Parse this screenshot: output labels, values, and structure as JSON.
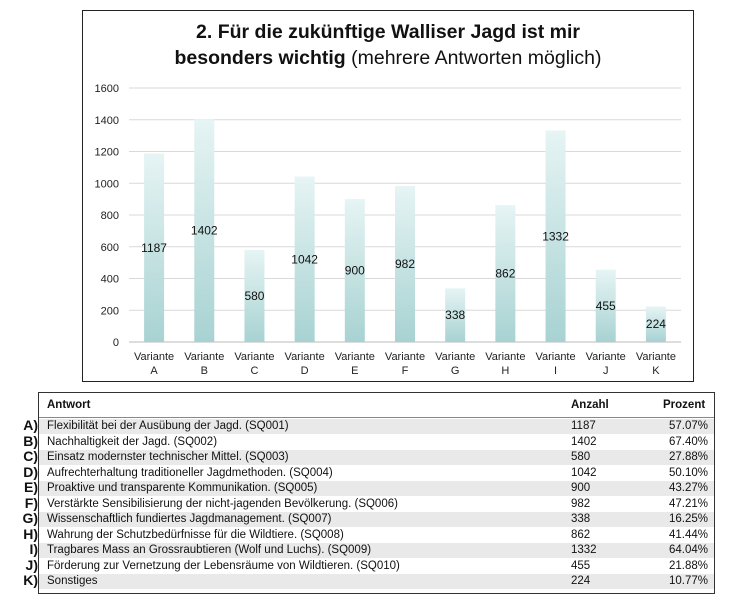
{
  "chart_data": {
    "type": "bar",
    "title_bold_1": "2. Für die zukünftige Walliser Jagd ist mir",
    "title_bold_2": "besonders wichtig",
    "title_normal": "(mehrere Antworten möglich)",
    "categories": [
      "Variante A",
      "Variante B",
      "Variante C",
      "Variante D",
      "Variante E",
      "Variante F",
      "Variante G",
      "Variante H",
      "Variante I",
      "Variante J",
      "Variante K"
    ],
    "values": [
      1187,
      1402,
      580,
      1042,
      900,
      982,
      338,
      862,
      1332,
      455,
      224
    ],
    "ylim": [
      0,
      1600
    ],
    "yticks": [
      0,
      200,
      400,
      600,
      800,
      1000,
      1200,
      1400,
      1600
    ],
    "grid": true,
    "bar_color_top": "#e6f4f4",
    "bar_color_bottom": "#a8d2d2"
  },
  "table": {
    "headers": {
      "answer": "Antwort",
      "count": "Anzahl",
      "percent": "Prozent"
    },
    "rows": [
      {
        "letter": "A)",
        "answer": "Flexibilität bei der Ausübung der Jagd. (SQ001)",
        "count": "1187",
        "percent": "57.07%"
      },
      {
        "letter": "B)",
        "answer": "Nachhaltigkeit der Jagd. (SQ002)",
        "count": "1402",
        "percent": "67.40%"
      },
      {
        "letter": "C)",
        "answer": "Einsatz modernster technischer Mittel. (SQ003)",
        "count": "580",
        "percent": "27.88%"
      },
      {
        "letter": "D)",
        "answer": "Aufrechterhaltung traditioneller Jagdmethoden. (SQ004)",
        "count": "1042",
        "percent": "50.10%"
      },
      {
        "letter": "E)",
        "answer": "Proaktive und transparente Kommunikation. (SQ005)",
        "count": "900",
        "percent": "43.27%"
      },
      {
        "letter": "F)",
        "answer": "Verstärkte Sensibilisierung der nicht-jagenden Bevölkerung. (SQ006)",
        "count": "982",
        "percent": "47.21%"
      },
      {
        "letter": "G)",
        "answer": "Wissenschaftlich fundiertes Jagdmanagement. (SQ007)",
        "count": "338",
        "percent": "16.25%"
      },
      {
        "letter": "H)",
        "answer": "Wahrung der Schutzbedürfnisse für die Wildtiere. (SQ008)",
        "count": "862",
        "percent": "41.44%"
      },
      {
        "letter": "I)",
        "answer": "Tragbares Mass an Grossraubtieren (Wolf und Luchs). (SQ009)",
        "count": "1332",
        "percent": "64.04%"
      },
      {
        "letter": "J)",
        "answer": "Förderung zur Vernetzung der Lebensräume von Wildtieren. (SQ010)",
        "count": "455",
        "percent": "21.88%"
      },
      {
        "letter": "K)",
        "answer": "Sonstiges",
        "count": "224",
        "percent": "10.77%"
      }
    ]
  }
}
